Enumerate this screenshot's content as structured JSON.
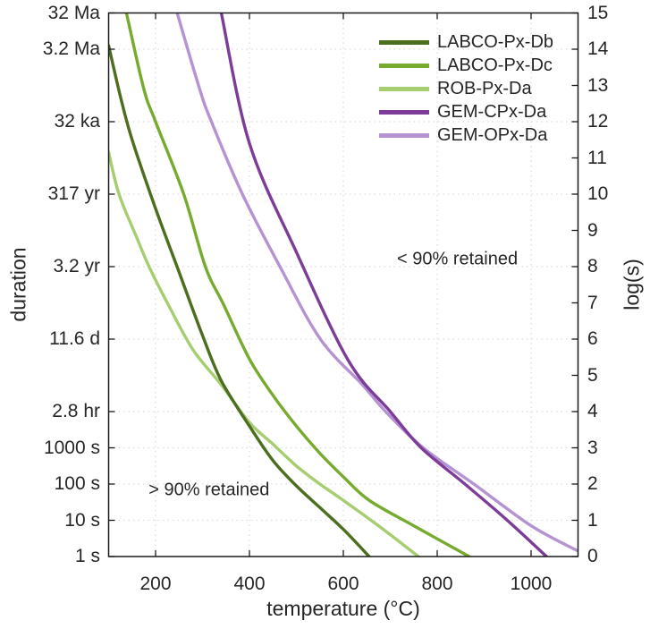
{
  "chart_data": {
    "type": "line",
    "title": "",
    "x": {
      "label": "temperature (°C)",
      "range": [
        100,
        1100
      ],
      "ticks": [
        200,
        400,
        600,
        800,
        1000
      ]
    },
    "y_left": {
      "label": "duration",
      "range_log": [
        0,
        15
      ],
      "ticks": [
        {
          "log": 15,
          "label": "32 Ma"
        },
        {
          "log": 14,
          "label": "3.2 Ma"
        },
        {
          "log": 12,
          "label": "32 ka"
        },
        {
          "log": 10,
          "label": "317 yr"
        },
        {
          "log": 8,
          "label": "3.2 yr"
        },
        {
          "log": 6,
          "label": "11.6 d"
        },
        {
          "log": 4,
          "label": "2.8 hr"
        },
        {
          "log": 3,
          "label": "1000 s"
        },
        {
          "log": 2,
          "label": "100 s"
        },
        {
          "log": 1,
          "label": "10 s"
        },
        {
          "log": 0,
          "label": "1 s"
        }
      ]
    },
    "y_right": {
      "label": "log(s)",
      "min": 0,
      "max": 15,
      "step": 1
    },
    "grid": {
      "x_lines": [
        200,
        400,
        600,
        800,
        1000
      ],
      "y_lines": [
        14,
        12,
        10,
        8,
        6,
        4,
        3,
        2,
        1
      ],
      "color": "#dcdcdc"
    },
    "frame_color": "#1a1a1a",
    "text_color": "#262626",
    "series": [
      {
        "name": "LABCO-Px-Db",
        "color": "#4c6e1f",
        "points": [
          [
            100,
            14.1
          ],
          [
            125,
            12.7
          ],
          [
            150,
            11.5
          ],
          [
            200,
            9.6
          ],
          [
            250,
            7.85
          ],
          [
            300,
            6.1
          ],
          [
            340,
            4.85
          ],
          [
            400,
            3.6
          ],
          [
            450,
            2.65
          ],
          [
            500,
            1.95
          ],
          [
            550,
            1.35
          ],
          [
            600,
            0.75
          ],
          [
            655,
            0
          ]
        ]
      },
      {
        "name": "LABCO-Px-Dc",
        "color": "#77ab2f",
        "points": [
          [
            138,
            15
          ],
          [
            175,
            12.9
          ],
          [
            200,
            12.0
          ],
          [
            260,
            10.0
          ],
          [
            306,
            8.0
          ],
          [
            345,
            6.95
          ],
          [
            400,
            5.45
          ],
          [
            450,
            4.45
          ],
          [
            500,
            3.6
          ],
          [
            550,
            2.85
          ],
          [
            600,
            2.2
          ],
          [
            655,
            1.55
          ],
          [
            750,
            0.85
          ],
          [
            868,
            0
          ]
        ]
      },
      {
        "name": "ROB-Px-Da",
        "color": "#a6ce70",
        "points": [
          [
            100,
            11.16
          ],
          [
            122,
            10.0
          ],
          [
            160,
            8.8
          ],
          [
            186,
            8.0
          ],
          [
            227,
            6.95
          ],
          [
            280,
            5.7
          ],
          [
            340,
            4.74
          ],
          [
            400,
            3.7
          ],
          [
            450,
            3.1
          ],
          [
            500,
            2.5
          ],
          [
            550,
            2.0
          ],
          [
            600,
            1.55
          ],
          [
            680,
            0.8
          ],
          [
            760,
            0
          ]
        ]
      },
      {
        "name": "GEM-CPx-Da",
        "color": "#7d3c98",
        "points": [
          [
            340,
            15
          ],
          [
            400,
            11.4
          ],
          [
            500,
            8.4
          ],
          [
            611,
            5.4
          ],
          [
            700,
            4.0
          ],
          [
            766,
            3.0
          ],
          [
            859,
            2.0
          ],
          [
            945,
            1.05
          ],
          [
            1033,
            0
          ]
        ]
      },
      {
        "name": "GEM-OPx-Da",
        "color": "#b593d2",
        "points": [
          [
            246,
            15
          ],
          [
            294,
            12.9
          ],
          [
            319,
            12.0
          ],
          [
            385,
            10.0
          ],
          [
            465,
            8.0
          ],
          [
            551,
            6.0
          ],
          [
            640,
            4.75
          ],
          [
            690,
            4.0
          ],
          [
            770,
            3.0
          ],
          [
            878,
            2.0
          ],
          [
            1000,
            0.85
          ],
          [
            1100,
            0.15
          ]
        ]
      }
    ],
    "draw_order": [
      2,
      4,
      1,
      3,
      0
    ],
    "annotations": [
      {
        "text": "< 90% retained",
        "temp": 843,
        "log": 8.2
      },
      {
        "text": "> 90% retained",
        "temp": 314,
        "log": 1.83
      }
    ]
  }
}
